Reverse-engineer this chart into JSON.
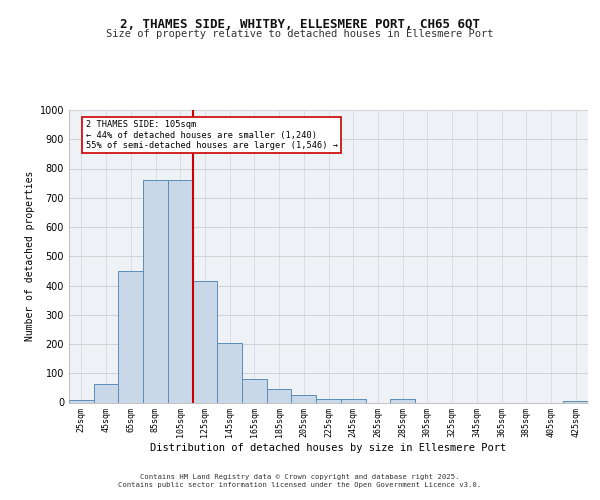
{
  "title": "2, THAMES SIDE, WHITBY, ELLESMERE PORT, CH65 6QT",
  "subtitle": "Size of property relative to detached houses in Ellesmere Port",
  "xlabel": "Distribution of detached houses by size in Ellesmere Port",
  "ylabel": "Number of detached properties",
  "bin_labels": [
    "25sqm",
    "45sqm",
    "65sqm",
    "85sqm",
    "105sqm",
    "125sqm",
    "145sqm",
    "165sqm",
    "185sqm",
    "205sqm",
    "225sqm",
    "245sqm",
    "265sqm",
    "285sqm",
    "305sqm",
    "325sqm",
    "345sqm",
    "365sqm",
    "385sqm",
    "405sqm",
    "425sqm"
  ],
  "bar_heights": [
    10,
    62,
    450,
    760,
    760,
    415,
    205,
    80,
    45,
    27,
    12,
    12,
    0,
    12,
    0,
    0,
    0,
    0,
    0,
    0,
    5
  ],
  "bar_color": "#c8d8e8",
  "bar_edgecolor": "#5b8db8",
  "bar_linewidth": 0.7,
  "vline_x_index": 4,
  "vline_color": "#cc0000",
  "vline_linewidth": 1.5,
  "annotation_text": "2 THAMES SIDE: 105sqm\n← 44% of detached houses are smaller (1,240)\n55% of semi-detached houses are larger (1,546) →",
  "annotation_box_color": "#ffffff",
  "annotation_box_edgecolor": "#cc0000",
  "ylim": [
    0,
    1000
  ],
  "yticks": [
    0,
    100,
    200,
    300,
    400,
    500,
    600,
    700,
    800,
    900,
    1000
  ],
  "grid_color": "#cccccc",
  "background_color": "#eef2f7",
  "footer_line1": "Contains HM Land Registry data © Crown copyright and database right 2025.",
  "footer_line2": "Contains public sector information licensed under the Open Government Licence v3.0."
}
